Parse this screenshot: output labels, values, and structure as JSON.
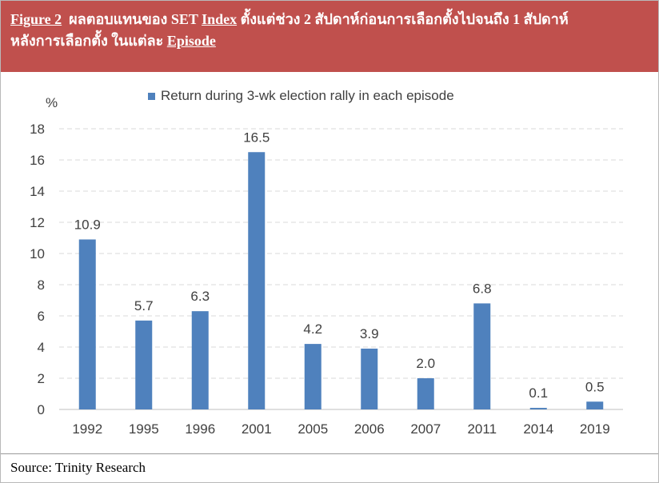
{
  "header": {
    "figure_label": "Figure 2",
    "title_part1": "ผลตอบแทนของ SET",
    "title_index": "Index",
    "title_part2": "ตั้งแต่ช่วง 2 สัปดาห์ก่อนการเลือกตั้งไปจนถึง 1 สัปดาห์",
    "title_line2": "หลังการเลือกตั้ง ในแต่ละ",
    "title_episode": "Episode"
  },
  "source": "Source: Trinity Research",
  "colors": {
    "header_bg": "#c0504d",
    "bar": "#4f81bd",
    "grid": "#d9d9d9",
    "text": "#404040"
  },
  "chart_data": {
    "type": "bar",
    "title": "",
    "ylabel": "%",
    "xlabel": "",
    "categories": [
      "1992",
      "1995",
      "1996",
      "2001",
      "2005",
      "2006",
      "2007",
      "2011",
      "2014",
      "2019"
    ],
    "series": [
      {
        "name": "Return during 3-wk election rally in each episode",
        "values": [
          10.9,
          5.7,
          6.3,
          16.5,
          4.2,
          3.9,
          2.0,
          6.8,
          0.1,
          0.5
        ]
      }
    ],
    "data_labels": [
      "10.9",
      "5.7",
      "6.3",
      "16.5",
      "4.2",
      "3.9",
      "2.0",
      "6.8",
      "0.1",
      "0.5"
    ],
    "ylim": [
      0,
      18
    ],
    "yticks": [
      0,
      2,
      4,
      6,
      8,
      10,
      12,
      14,
      16,
      18
    ],
    "grid": "horizontal dashed",
    "legend_position": "top"
  }
}
